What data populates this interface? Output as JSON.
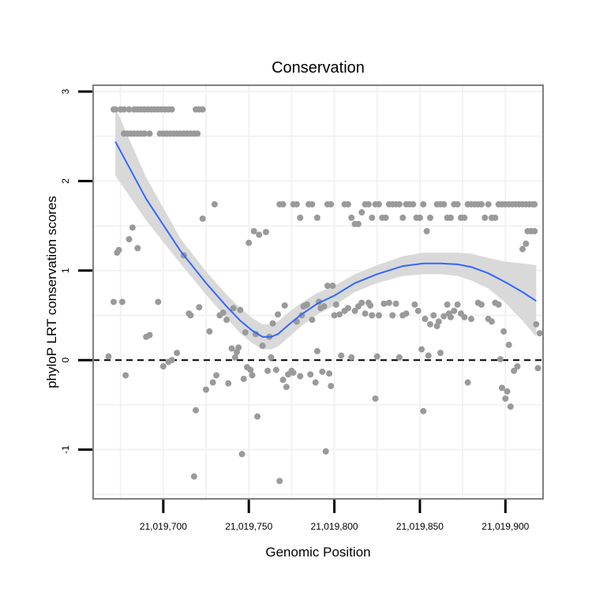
{
  "chart_data": {
    "type": "scatter",
    "title": "Conservation",
    "xlabel": "Genomic Position",
    "ylabel": "phyloP LRT conservation scores",
    "xlim": [
      21019659,
      21019922
    ],
    "ylim": [
      -1.55,
      3.07
    ],
    "x_ticks": [
      21019700,
      21019750,
      21019800,
      21019850,
      21019900
    ],
    "x_tick_labels": [
      "21,019,700",
      "21,019,750",
      "21,019,800",
      "21,019,850",
      "21,019,900"
    ],
    "y_ticks": [
      -1,
      0,
      1,
      2,
      3
    ],
    "y_tick_labels": [
      "-1",
      "0",
      "1",
      "2",
      "3"
    ],
    "reference_line": {
      "y": 0,
      "style": "dashed"
    },
    "colors": {
      "points": "#9a9a9a",
      "smooth_line": "#3366ff",
      "band": "#d9d9d9",
      "panel_border": "#808080",
      "grid": "#f2f2f2"
    },
    "series": [
      {
        "name": "scores",
        "points": [
          [
            21019671,
            2.8
          ],
          [
            21019672,
            2.8
          ],
          [
            21019675,
            2.8
          ],
          [
            21019677,
            2.8
          ],
          [
            21019680,
            2.8
          ],
          [
            21019683,
            2.8
          ],
          [
            21019685,
            2.8
          ],
          [
            21019687,
            2.8
          ],
          [
            21019689,
            2.8
          ],
          [
            21019691,
            2.8
          ],
          [
            21019693,
            2.8
          ],
          [
            21019695,
            2.8
          ],
          [
            21019697,
            2.8
          ],
          [
            21019699,
            2.8
          ],
          [
            21019701,
            2.8
          ],
          [
            21019703,
            2.8
          ],
          [
            21019705,
            2.8
          ],
          [
            21019719,
            2.8
          ],
          [
            21019721,
            2.8
          ],
          [
            21019723,
            2.8
          ],
          [
            21019677,
            2.53
          ],
          [
            21019679,
            2.53
          ],
          [
            21019681,
            2.53
          ],
          [
            21019683,
            2.53
          ],
          [
            21019685,
            2.53
          ],
          [
            21019687,
            2.53
          ],
          [
            21019689,
            2.53
          ],
          [
            21019692,
            2.53
          ],
          [
            21019698,
            2.53
          ],
          [
            21019700,
            2.53
          ],
          [
            21019702,
            2.53
          ],
          [
            21019704,
            2.53
          ],
          [
            21019706,
            2.53
          ],
          [
            21019708,
            2.53
          ],
          [
            21019710,
            2.53
          ],
          [
            21019712,
            2.53
          ],
          [
            21019714,
            2.53
          ],
          [
            21019716,
            2.53
          ],
          [
            21019718,
            2.53
          ],
          [
            21019720,
            2.53
          ],
          [
            21019671,
            0.65
          ],
          [
            21019673,
            1.2
          ],
          [
            21019674,
            1.23
          ],
          [
            21019676,
            0.65
          ],
          [
            21019678,
            -0.17
          ],
          [
            21019680,
            1.35
          ],
          [
            21019682,
            1.48
          ],
          [
            21019685,
            1.25
          ],
          [
            21019690,
            0.26
          ],
          [
            21019692,
            0.28
          ],
          [
            21019697,
            0.65
          ],
          [
            21019700,
            -0.07
          ],
          [
            21019703,
            -0.02
          ],
          [
            21019705,
            0.0
          ],
          [
            21019708,
            0.08
          ],
          [
            21019712,
            1.17
          ],
          [
            21019715,
            0.52
          ],
          [
            21019716,
            0.5
          ],
          [
            21019718,
            -1.3
          ],
          [
            21019719,
            -0.56
          ],
          [
            21019721,
            0.59
          ],
          [
            21019723,
            1.58
          ],
          [
            21019725,
            -0.33
          ],
          [
            21019727,
            0.32
          ],
          [
            21019729,
            -0.25
          ],
          [
            21019730,
            1.74
          ],
          [
            21019731,
            -0.17
          ],
          [
            21019733,
            0.5
          ],
          [
            21019735,
            0.53
          ],
          [
            21019737,
            0.45
          ],
          [
            21019738,
            -0.26
          ],
          [
            21019740,
            0.13
          ],
          [
            21019741,
            0.58
          ],
          [
            21019742,
            0.03
          ],
          [
            21019743,
            0.09
          ],
          [
            21019744,
            0.14
          ],
          [
            21019745,
            0.56
          ],
          [
            21019746,
            -1.05
          ],
          [
            21019747,
            -0.21
          ],
          [
            21019748,
            0.31
          ],
          [
            21019749,
            -0.08
          ],
          [
            21019750,
            1.31
          ],
          [
            21019751,
            -0.11
          ],
          [
            21019752,
            -0.17
          ],
          [
            21019753,
            1.44
          ],
          [
            21019754,
            0.29
          ],
          [
            21019755,
            -0.63
          ],
          [
            21019756,
            1.4
          ],
          [
            21019758,
            0.16
          ],
          [
            21019760,
            1.43
          ],
          [
            21019761,
            -0.12
          ],
          [
            21019762,
            0.26
          ],
          [
            21019763,
            0.03
          ],
          [
            21019764,
            0.41
          ],
          [
            21019766,
            -0.11
          ],
          [
            21019767,
            0.51
          ],
          [
            21019768,
            -1.35
          ],
          [
            21019770,
            -0.22
          ],
          [
            21019771,
            0.61
          ],
          [
            21019772,
            -0.3
          ],
          [
            21019773,
            -0.16
          ],
          [
            21019775,
            -0.12
          ],
          [
            21019776,
            -0.14
          ],
          [
            21019778,
            0.43
          ],
          [
            21019780,
            -0.18
          ],
          [
            21019781,
            0.5
          ],
          [
            21019782,
            0.6
          ],
          [
            21019783,
            0.61
          ],
          [
            21019784,
            0.62
          ],
          [
            21019786,
            -0.16
          ],
          [
            21019787,
            0.45
          ],
          [
            21019789,
            -0.25
          ],
          [
            21019790,
            0.1
          ],
          [
            21019791,
            0.65
          ],
          [
            21019792,
            0.58
          ],
          [
            21019793,
            -0.13
          ],
          [
            21019794,
            0.6
          ],
          [
            21019795,
            -1.02
          ],
          [
            21019796,
            0.83
          ],
          [
            21019797,
            -0.15
          ],
          [
            21019798,
            -0.29
          ],
          [
            21019799,
            0.83
          ],
          [
            21019800,
            0.5
          ],
          [
            21019801,
            0.62
          ],
          [
            21019803,
            0.51
          ],
          [
            21019804,
            0.05
          ],
          [
            21019806,
            0.55
          ],
          [
            21019808,
            0.58
          ],
          [
            21019810,
            0.03
          ],
          [
            21019812,
            0.55
          ],
          [
            21019814,
            0.6
          ],
          [
            21019816,
            0.64
          ],
          [
            21019818,
            0.52
          ],
          [
            21019820,
            0.64
          ],
          [
            21019821,
            0.61
          ],
          [
            21019822,
            0.5
          ],
          [
            21019824,
            -0.43
          ],
          [
            21019825,
            0.04
          ],
          [
            21019826,
            0.5
          ],
          [
            21019829,
            0.63
          ],
          [
            21019832,
            0.64
          ],
          [
            21019834,
            0.5
          ],
          [
            21019836,
            0.63
          ],
          [
            21019838,
            0.03
          ],
          [
            21019840,
            0.5
          ],
          [
            21019842,
            0.52
          ],
          [
            21019847,
            0.62
          ],
          [
            21019849,
            0.55
          ],
          [
            21019851,
            0.12
          ],
          [
            21019852,
            -0.57
          ],
          [
            21019853,
            0.46
          ],
          [
            21019855,
            0.05
          ],
          [
            21019856,
            0.4
          ],
          [
            21019858,
            0.5
          ],
          [
            21019860,
            0.38
          ],
          [
            21019861,
            0.43
          ],
          [
            21019862,
            0.08
          ],
          [
            21019864,
            0.49
          ],
          [
            21019866,
            0.62
          ],
          [
            21019867,
            0.52
          ],
          [
            21019868,
            0.48
          ],
          [
            21019870,
            0.55
          ],
          [
            21019872,
            0.62
          ],
          [
            21019874,
            0.52
          ],
          [
            21019876,
            0.48
          ],
          [
            21019878,
            -0.25
          ],
          [
            21019880,
            0.46
          ],
          [
            21019884,
            0.64
          ],
          [
            21019886,
            0.62
          ],
          [
            21019890,
            0.46
          ],
          [
            21019892,
            0.43
          ],
          [
            21019894,
            0.64
          ],
          [
            21019896,
            0.62
          ],
          [
            21019897,
            0.01
          ],
          [
            21019898,
            -0.31
          ],
          [
            21019899,
            0.32
          ],
          [
            21019900,
            -0.43
          ],
          [
            21019901,
            -0.35
          ],
          [
            21019902,
            0.17
          ],
          [
            21019903,
            -0.52
          ],
          [
            21019905,
            -0.12
          ],
          [
            21019907,
            -0.07
          ],
          [
            21019910,
            1.24
          ],
          [
            21019912,
            1.3
          ],
          [
            21019913,
            1.44
          ],
          [
            21019915,
            1.44
          ],
          [
            21019917,
            1.44
          ],
          [
            21019918,
            0.4
          ],
          [
            21019919,
            -0.09
          ],
          [
            21019920,
            0.3
          ],
          [
            21019768,
            1.74
          ],
          [
            21019770,
            1.74
          ],
          [
            21019776,
            1.74
          ],
          [
            21019778,
            1.74
          ],
          [
            21019780,
            1.59
          ],
          [
            21019785,
            1.74
          ],
          [
            21019787,
            1.74
          ],
          [
            21019790,
            1.59
          ],
          [
            21019796,
            1.74
          ],
          [
            21019798,
            1.74
          ],
          [
            21019806,
            1.74
          ],
          [
            21019808,
            1.74
          ],
          [
            21019810,
            1.59
          ],
          [
            21019812,
            1.52
          ],
          [
            21019814,
            1.52
          ],
          [
            21019816,
            1.65
          ],
          [
            21019818,
            1.74
          ],
          [
            21019820,
            1.74
          ],
          [
            21019822,
            1.59
          ],
          [
            21019824,
            1.74
          ],
          [
            21019826,
            1.74
          ],
          [
            21019828,
            1.59
          ],
          [
            21019830,
            1.59
          ],
          [
            21019832,
            1.74
          ],
          [
            21019834,
            1.74
          ],
          [
            21019836,
            1.74
          ],
          [
            21019838,
            1.74
          ],
          [
            21019840,
            1.59
          ],
          [
            21019842,
            1.74
          ],
          [
            21019844,
            1.74
          ],
          [
            21019846,
            1.74
          ],
          [
            21019848,
            1.59
          ],
          [
            21019850,
            1.59
          ],
          [
            21019852,
            1.74
          ],
          [
            21019854,
            1.44
          ],
          [
            21019856,
            1.59
          ],
          [
            21019860,
            1.74
          ],
          [
            21019862,
            1.74
          ],
          [
            21019864,
            1.74
          ],
          [
            21019866,
            1.59
          ],
          [
            21019868,
            1.59
          ],
          [
            21019870,
            1.74
          ],
          [
            21019872,
            1.74
          ],
          [
            21019874,
            1.59
          ],
          [
            21019876,
            1.59
          ],
          [
            21019878,
            1.74
          ],
          [
            21019880,
            1.74
          ],
          [
            21019882,
            1.74
          ],
          [
            21019884,
            1.74
          ],
          [
            21019886,
            1.74
          ],
          [
            21019888,
            1.59
          ],
          [
            21019890,
            1.74
          ],
          [
            21019892,
            1.59
          ],
          [
            21019894,
            1.59
          ],
          [
            21019896,
            1.74
          ],
          [
            21019898,
            1.74
          ],
          [
            21019900,
            1.74
          ],
          [
            21019902,
            1.74
          ],
          [
            21019904,
            1.74
          ],
          [
            21019906,
            1.74
          ],
          [
            21019908,
            1.74
          ],
          [
            21019910,
            1.74
          ],
          [
            21019912,
            1.74
          ],
          [
            21019914,
            1.74
          ],
          [
            21019916,
            1.74
          ],
          [
            21019917,
            1.74
          ],
          [
            21019668,
            0.04
          ]
        ]
      },
      {
        "name": "loess fit",
        "x": [
          21019672,
          21019690,
          21019710,
          21019725,
          21019737,
          21019745,
          21019752,
          21019758,
          21019763,
          21019767,
          21019773,
          21019780,
          21019790,
          21019800,
          21019812,
          21019825,
          21019840,
          21019852,
          21019862,
          21019872,
          21019880,
          21019890,
          21019900,
          21019910,
          21019918
        ],
        "y": [
          2.44,
          1.8,
          1.22,
          0.86,
          0.6,
          0.44,
          0.33,
          0.26,
          0.26,
          0.29,
          0.39,
          0.5,
          0.63,
          0.72,
          0.86,
          0.96,
          1.05,
          1.08,
          1.08,
          1.07,
          1.04,
          0.97,
          0.87,
          0.76,
          0.66
        ],
        "ci_width": [
          0.38,
          0.24,
          0.14,
          0.13,
          0.13,
          0.14,
          0.14,
          0.14,
          0.14,
          0.14,
          0.14,
          0.13,
          0.12,
          0.11,
          0.1,
          0.1,
          0.11,
          0.12,
          0.12,
          0.13,
          0.15,
          0.17,
          0.23,
          0.32,
          0.4
        ]
      }
    ]
  }
}
